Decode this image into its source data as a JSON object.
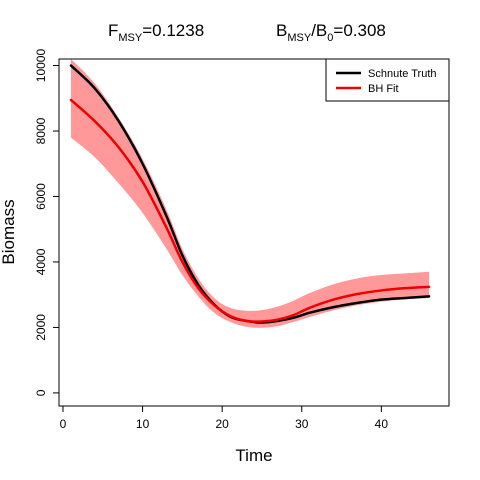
{
  "chart_data": {
    "type": "line",
    "header": {
      "fmsy": {
        "symbol": "F",
        "subscript": "MSY",
        "value": "=0.1238"
      },
      "bmsy_b0": {
        "symbol": "B",
        "subscript": "MSY",
        "slash": "/",
        "symbol2": "B",
        "subscript2": "0",
        "value": "=0.308"
      }
    },
    "xlabel": "Time",
    "ylabel": "Biomass",
    "xlim": [
      -0.5,
      48.5
    ],
    "ylim": [
      -400,
      10200
    ],
    "xticks": [
      0,
      10,
      20,
      30,
      40
    ],
    "yticks": [
      0,
      2000,
      4000,
      6000,
      8000,
      10000
    ],
    "grid": false,
    "legend_position": "top-right",
    "colors": {
      "truth": "#000000",
      "fit": "#ee0000",
      "band": "#ff9999"
    },
    "x": [
      1,
      4,
      7,
      10,
      13,
      15,
      17,
      19,
      21,
      23,
      25,
      27,
      29,
      31,
      34,
      37,
      40,
      43,
      46
    ],
    "band": {
      "upper": [
        10200,
        9450,
        8400,
        7150,
        5600,
        4400,
        3500,
        2900,
        2600,
        2510,
        2530,
        2640,
        2820,
        3050,
        3320,
        3500,
        3600,
        3650,
        3700
      ],
      "lower": [
        7800,
        7200,
        6400,
        5500,
        4400,
        3600,
        2950,
        2450,
        2170,
        2020,
        1990,
        2040,
        2170,
        2320,
        2520,
        2680,
        2790,
        2860,
        2900
      ]
    },
    "series": [
      {
        "name": "Schnute Truth",
        "values": [
          10000,
          9300,
          8300,
          7000,
          5400,
          4200,
          3300,
          2700,
          2330,
          2200,
          2150,
          2200,
          2300,
          2450,
          2620,
          2750,
          2850,
          2900,
          2950
        ]
      },
      {
        "name": "BH Fit",
        "values": [
          8950,
          8300,
          7500,
          6450,
          5050,
          4000,
          3200,
          2680,
          2350,
          2200,
          2180,
          2240,
          2380,
          2600,
          2850,
          3020,
          3130,
          3200,
          3240
        ]
      }
    ]
  }
}
